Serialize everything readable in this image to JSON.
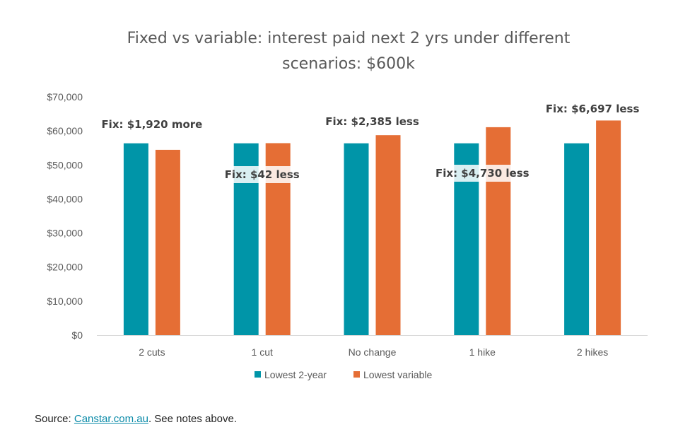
{
  "chart_data": {
    "type": "bar",
    "title": "Fixed vs variable: interest paid next 2 yrs under different scenarios: $600k",
    "title_lines": [
      "Fixed vs variable: interest paid next 2 yrs under different",
      "scenarios: $600k"
    ],
    "categories": [
      "2 cuts",
      "1 cut",
      "No change",
      "1 hike",
      "2 hikes"
    ],
    "series": [
      {
        "name": "Lowest 2-year",
        "color": "#0095A8",
        "values": [
          56360,
          56360,
          56360,
          56360,
          56360
        ]
      },
      {
        "name": "Lowest variable",
        "color": "#E56E35",
        "values": [
          54440,
          56402,
          58745,
          61090,
          63057
        ]
      }
    ],
    "annotations": [
      "Fix: $1,920 more",
      "Fix: $42 less",
      "Fix: $2,385 less",
      "Fix: $4,730 less",
      "Fix: $6,697 less"
    ],
    "ylim": [
      0,
      70000
    ],
    "yticks": [
      "$0",
      "$10,000",
      "$20,000",
      "$30,000",
      "$40,000",
      "$50,000",
      "$60,000",
      "$70,000"
    ],
    "grid": false,
    "legend": "bottom",
    "xlabel": "",
    "ylabel": ""
  },
  "source": {
    "prefix": "Source: ",
    "link": "Canstar.com.au",
    "suffix": ". See notes above."
  }
}
